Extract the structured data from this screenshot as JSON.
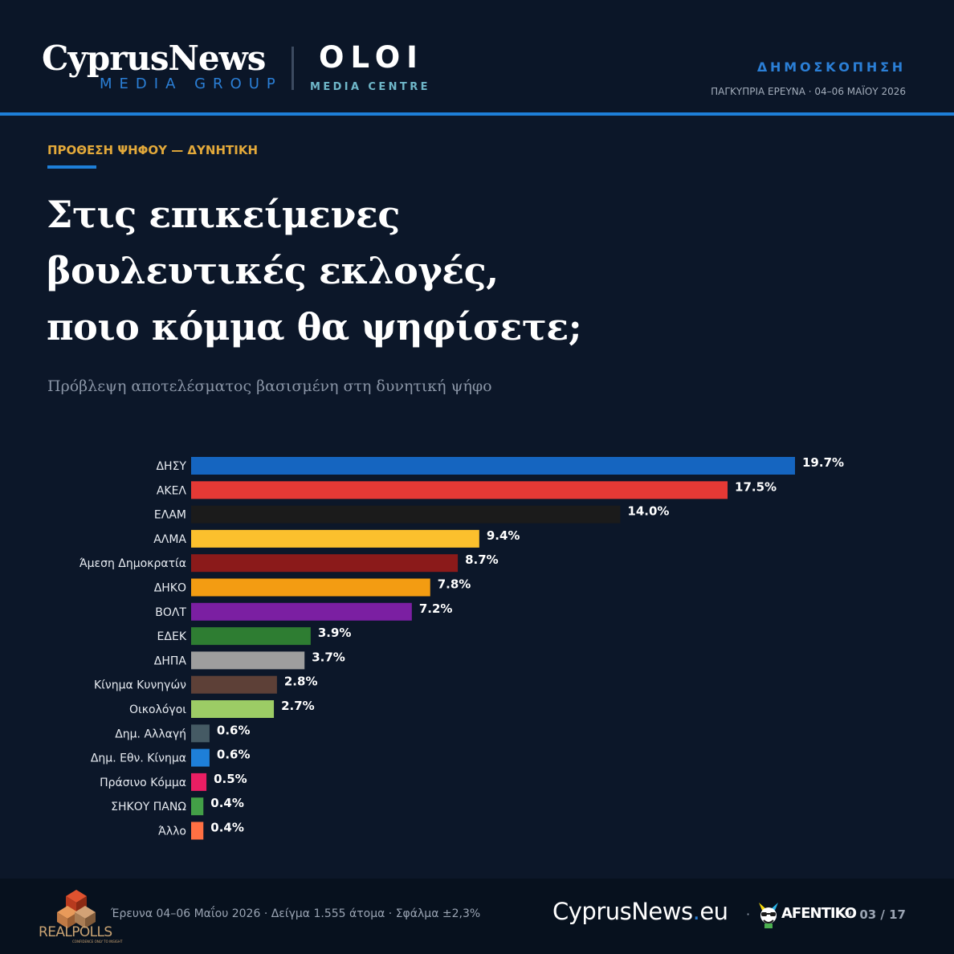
{
  "header": {
    "brand_name": "CyprusNews",
    "brand_sub": "MEDIA GROUP",
    "partner_name": "OLOI",
    "partner_sub": "MEDIA CENTRE",
    "kicker": "ΔΗΜΟΣΚΟΠΗΣΗ",
    "survey_info": "ΠΑΓΚΥΠΡΙΑ ΕΡΕΥΝΑ · 04–06 ΜΑΪΟΥ 2026"
  },
  "eyebrow": "ΠΡΟΘΕΣΗ ΨΗΦΟΥ — ΔΥΝΗΤΙΚΗ",
  "title_lines": [
    "Στις επικείμενες",
    "βουλευτικές εκλογές,",
    "ποιο κόμμα θα ψηφίσετε;"
  ],
  "subtitle": "Πρόβλεψη αποτελέσματος βασισμένη στη δυνητική ψήφο",
  "chart_data": {
    "type": "bar",
    "orientation": "horizontal",
    "categories": [
      "ΔΗΣΥ",
      "ΑΚΕΛ",
      "ΕΛΑΜ",
      "ΑΛΜΑ",
      "Άμεση Δημοκρατία",
      "ΔΗΚΟ",
      "ΒΟΛΤ",
      "ΕΔΕΚ",
      "ΔΗΠΑ",
      "Κίνημα Κυνηγών",
      "Οικολόγοι",
      "Δημ. Αλλαγή",
      "Δημ. Εθν. Κίνημα",
      "Πράσινο Κόμμα",
      "ΣΗΚΟΥ ΠΑΝΩ",
      "Άλλο"
    ],
    "values": [
      19.7,
      17.5,
      14.0,
      9.4,
      8.7,
      7.8,
      7.2,
      3.9,
      3.7,
      2.8,
      2.7,
      0.6,
      0.6,
      0.5,
      0.4,
      0.4
    ],
    "value_labels": [
      "19.7%",
      "17.5%",
      "14.0%",
      "9.4%",
      "8.7%",
      "7.8%",
      "7.2%",
      "3.9%",
      "3.7%",
      "2.8%",
      "2.7%",
      "0.6%",
      "0.6%",
      "0.5%",
      "0.4%",
      "0.4%"
    ],
    "colors": [
      "#1565c0",
      "#e53935",
      "#1b1b1b",
      "#fbc02d",
      "#8b1a1a",
      "#f39c12",
      "#7b1fa2",
      "#2e7d32",
      "#9e9e9e",
      "#5d4037",
      "#9ccc65",
      "#455a64",
      "#1e7fd8",
      "#e91e63",
      "#43a047",
      "#ff7043"
    ],
    "xlim": [
      0,
      19.7
    ],
    "grid": false,
    "legend": "none",
    "title": "",
    "xlabel": "",
    "ylabel": ""
  },
  "footer": {
    "pollster": "REALPOLLS",
    "pollster_tagline": "CONFIDENCE ONLY TO INSIGHT",
    "meta": "Έρευνα 04–06 Μαΐου 2026  ·  Δείγμα 1.555 άτομα  ·  Σφάλμα ±2,3%",
    "site_name": "CyprusNews",
    "site_dot": ".",
    "site_tld": "eu",
    "separator": "·",
    "partner_logo_text": "AFENTIKO",
    "partner_logo_small": "εu",
    "page_indicator": "03 / 17"
  },
  "colors": {
    "background": "#0c1729",
    "accent_blue": "#1e7fd8",
    "eyebrow_gold": "#e3a93a"
  },
  "icons": [
    "realpolls-cube-icon",
    "afentiko-mascot-icon"
  ]
}
